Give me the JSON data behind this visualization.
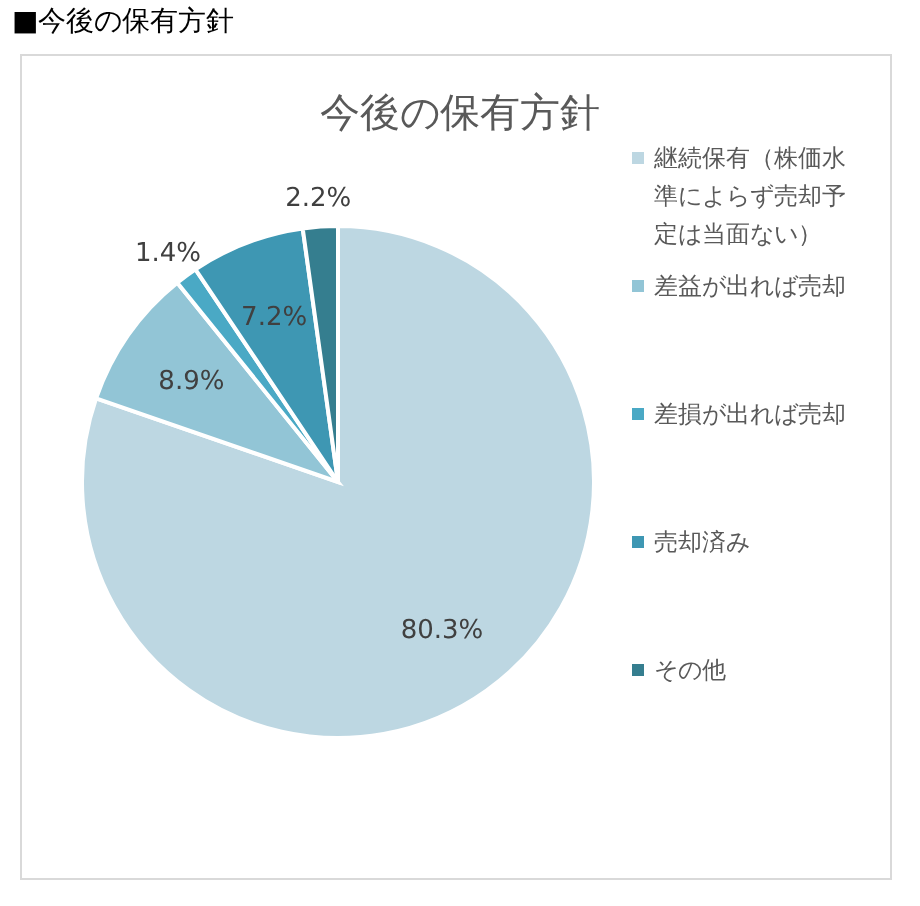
{
  "chart_data": {
    "type": "pie",
    "title": "今後の保有方針",
    "categories": [
      "継続保有（株価水準によらず売却予定は当面ない）",
      "差益が出れば売却",
      "差損が出れば売却",
      "売却済み",
      "その他"
    ],
    "values": [
      80.3,
      8.9,
      1.4,
      7.2,
      2.2
    ],
    "colors": [
      "#bdd7e2",
      "#92c5d6",
      "#4aa9c5",
      "#3e97b3",
      "#357e8f"
    ],
    "value_labels": [
      "80.3%",
      "8.9%",
      "1.4%",
      "7.2%",
      "2.2%"
    ],
    "legend": "right",
    "annotations": [
      "■今後の保有方針"
    ]
  }
}
